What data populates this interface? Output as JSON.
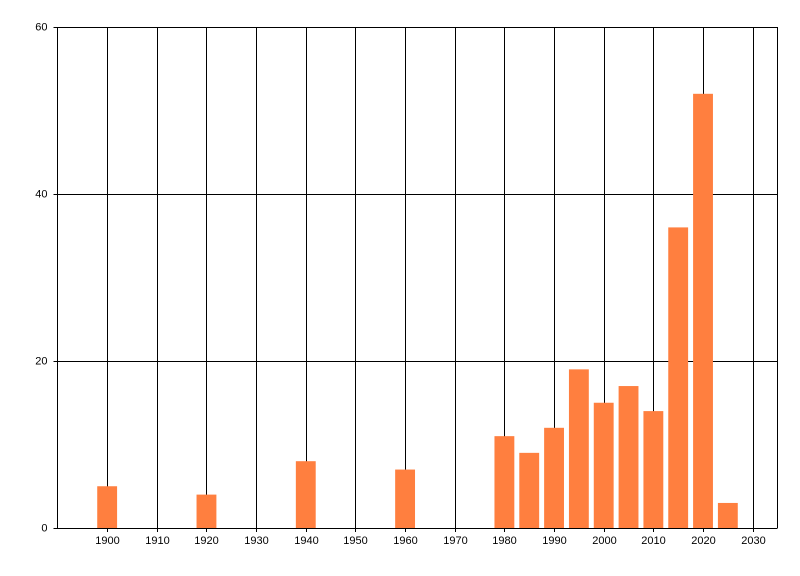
{
  "chart_data": {
    "type": "bar",
    "x": [
      1900,
      1920,
      1940,
      1960,
      1980,
      1985,
      1990,
      1995,
      2000,
      2005,
      2010,
      2015,
      2020,
      2025
    ],
    "values": [
      5,
      4,
      8,
      7,
      11,
      9,
      12,
      19,
      15,
      17,
      14,
      36,
      52,
      3
    ],
    "color": "#ff7f3f",
    "xlim": [
      1890,
      2035
    ],
    "ylim": [
      0,
      60
    ],
    "xticks": [
      1900,
      1910,
      1920,
      1930,
      1940,
      1950,
      1960,
      1970,
      1980,
      1990,
      2000,
      2010,
      2020,
      2030
    ],
    "yticks": [
      0,
      20,
      40,
      60
    ],
    "grid": true
  }
}
